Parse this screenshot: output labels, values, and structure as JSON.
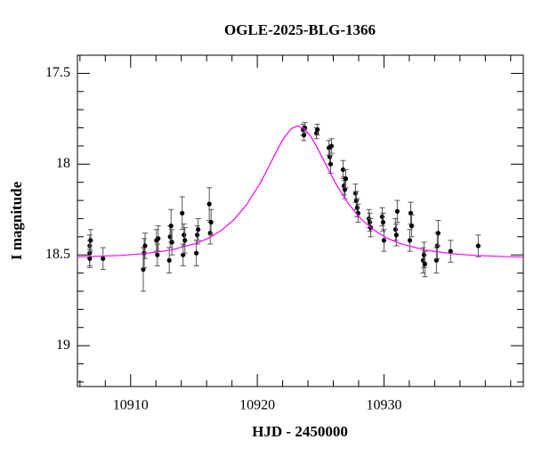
{
  "chart_data": {
    "type": "scatter",
    "title": "OGLE-2025-BLG-1366",
    "x_label": "HJD - 2450000",
    "y_label": "I magnitude",
    "xlim": [
      10905.8,
      10941
    ],
    "ylim": [
      17.4,
      19.225
    ],
    "y_inverted": true,
    "xticks": [
      10910,
      10920,
      10930
    ],
    "x_minor_ticks": [
      10906,
      10908,
      10912,
      10914,
      10916,
      10918,
      10922,
      10924,
      10926,
      10928,
      10932,
      10934,
      10936,
      10938,
      10940
    ],
    "yticks": [
      17.5,
      18,
      18.5,
      19
    ],
    "y_minor_ticks": [
      17.6,
      17.7,
      17.8,
      17.9,
      18.1,
      18.2,
      18.3,
      18.4,
      18.6,
      18.7,
      18.8,
      18.9,
      19.1,
      19.2
    ],
    "series": [
      {
        "color": "#000000",
        "x": [
          10906.77,
          10906.77,
          10906.77,
          10906.84,
          10907.82,
          10911.0,
          10911.07,
          10911.14,
          10912.04,
          10912.11,
          10912.18,
          10913.05,
          10913.12,
          10913.19,
          10913.26,
          10914.07,
          10914.14,
          10914.21,
          10914.28,
          10915.19,
          10915.26,
          10915.33,
          10916.21,
          10916.28,
          10916.35,
          10923.61,
          10923.68,
          10923.75,
          10924.67,
          10924.74,
          10925.65,
          10925.72,
          10925.79,
          10925.86,
          10926.77,
          10926.84,
          10926.91,
          10926.98,
          10927.75,
          10927.82,
          10927.89,
          10927.96,
          10928.81,
          10928.88,
          10928.95,
          10929.86,
          10929.93,
          10930.0,
          10930.91,
          10930.98,
          10931.05,
          10932.04,
          10932.11,
          10932.18,
          10933.09,
          10933.16,
          10933.23,
          10934.14,
          10934.21,
          10934.28,
          10935.26,
          10937.44
        ],
        "values": [
          18.45,
          18.49,
          18.52,
          18.42,
          18.52,
          18.58,
          18.49,
          18.45,
          18.42,
          18.5,
          18.41,
          18.53,
          18.4,
          18.34,
          18.43,
          18.27,
          18.5,
          18.39,
          18.42,
          18.49,
          18.39,
          18.36,
          18.22,
          18.38,
          18.32,
          17.81,
          17.84,
          17.8,
          17.83,
          17.81,
          17.91,
          17.96,
          18.0,
          17.9,
          18.03,
          18.12,
          18.14,
          18.08,
          18.16,
          18.2,
          18.24,
          18.27,
          18.3,
          18.32,
          18.35,
          18.29,
          18.32,
          18.42,
          18.36,
          18.39,
          18.26,
          18.42,
          18.27,
          18.34,
          18.53,
          18.5,
          18.55,
          18.53,
          18.45,
          18.38,
          18.48,
          18.45
        ],
        "errors": [
          0.06,
          0.07,
          0.05,
          0.06,
          0.06,
          0.12,
          0.08,
          0.07,
          0.06,
          0.06,
          0.07,
          0.07,
          0.06,
          0.09,
          0.07,
          0.09,
          0.06,
          0.06,
          0.07,
          0.07,
          0.05,
          0.06,
          0.09,
          0.06,
          0.07,
          0.03,
          0.03,
          0.03,
          0.03,
          0.03,
          0.04,
          0.04,
          0.05,
          0.04,
          0.05,
          0.05,
          0.05,
          0.05,
          0.05,
          0.05,
          0.05,
          0.05,
          0.05,
          0.05,
          0.05,
          0.05,
          0.05,
          0.06,
          0.06,
          0.06,
          0.06,
          0.06,
          0.06,
          0.06,
          0.07,
          0.07,
          0.07,
          0.07,
          0.07,
          0.07,
          0.06,
          0.06
        ]
      },
      {
        "type": "line",
        "color": "#ff00ff",
        "x": [
          10905.8,
          10909.2,
          10911.2,
          10913.2,
          10915.2,
          10916.2,
          10917.2,
          10918.2,
          10919.2,
          10920.2,
          10920.7,
          10921.2,
          10921.7,
          10922.2,
          10922.7,
          10923.2,
          10923.7,
          10924.2,
          10924.7,
          10925.2,
          10925.7,
          10926.2,
          10927.2,
          10928.2,
          10929.2,
          10930.2,
          10931.2,
          10933.2,
          10935.2,
          10937.2,
          10940.2,
          10941
        ],
        "values": [
          18.511,
          18.503,
          18.492,
          18.473,
          18.436,
          18.406,
          18.363,
          18.303,
          18.219,
          18.108,
          18.042,
          17.973,
          17.905,
          17.845,
          17.804,
          17.789,
          17.804,
          17.845,
          17.905,
          17.973,
          18.042,
          18.108,
          18.219,
          18.303,
          18.363,
          18.406,
          18.436,
          18.473,
          18.492,
          18.503,
          18.511,
          18.512
        ]
      }
    ]
  }
}
